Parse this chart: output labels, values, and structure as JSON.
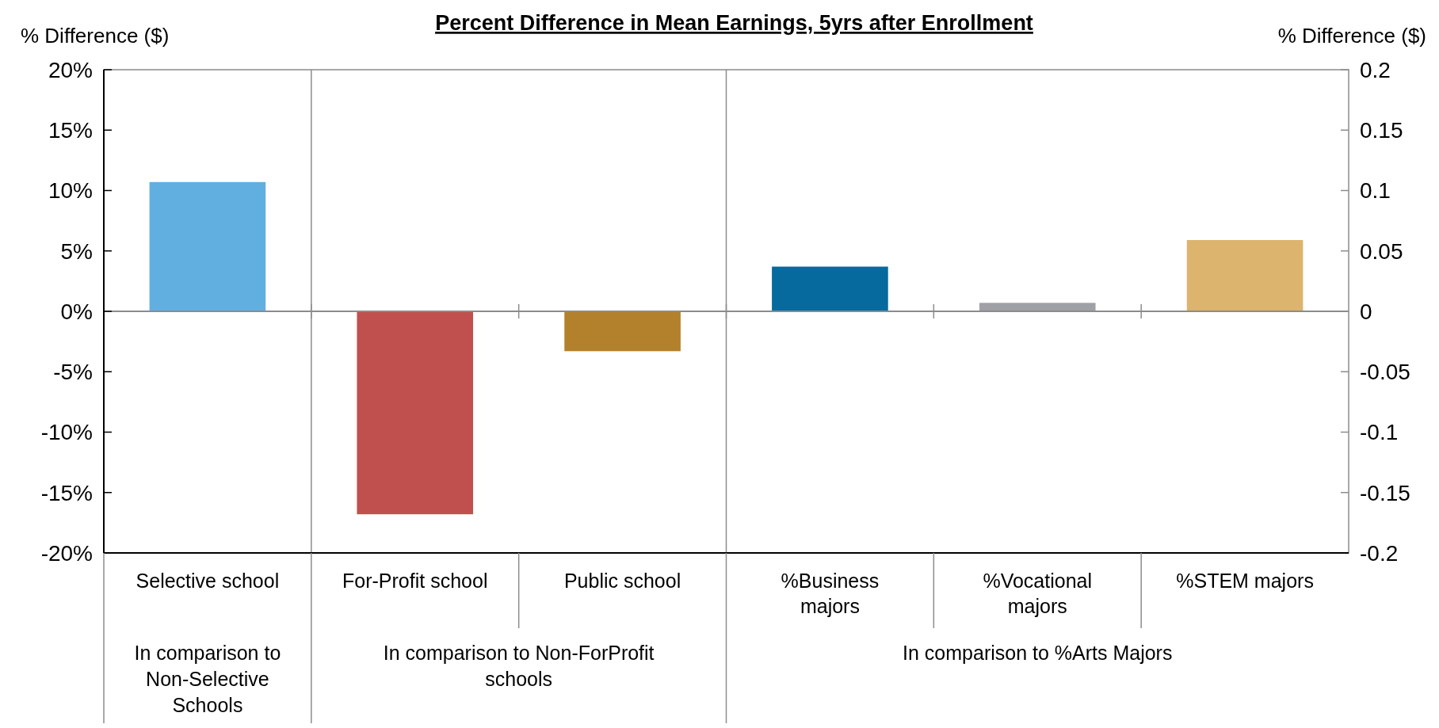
{
  "chart_data": {
    "type": "bar",
    "title": "Percent Difference in Mean Earnings, 5yrs after Enrollment",
    "ylabel": "% Difference ($)",
    "y2label": "% Difference ($)",
    "categories": [
      "Selective school",
      "For-Profit school",
      "Public school",
      "%Business majors",
      "%Vocational majors",
      "%STEM majors"
    ],
    "values": [
      10.7,
      -16.8,
      -3.3,
      3.7,
      0.7,
      5.9
    ],
    "colors": [
      "#61afe1",
      "#c0504d",
      "#b3812c",
      "#066a9e",
      "#a0a1a6",
      "#dcb46e"
    ],
    "ylim": [
      -20,
      20
    ],
    "yticks": [
      {
        "value": 20,
        "label": "20%"
      },
      {
        "value": 15,
        "label": "15%"
      },
      {
        "value": 10,
        "label": "10%"
      },
      {
        "value": 5,
        "label": "5%"
      },
      {
        "value": 0,
        "label": "0%"
      },
      {
        "value": -5,
        "label": "-5%"
      },
      {
        "value": -10,
        "label": "-10%"
      },
      {
        "value": -15,
        "label": "-15%"
      },
      {
        "value": -20,
        "label": "-20%"
      }
    ],
    "y2lim": [
      -0.2,
      0.2
    ],
    "y2ticks": [
      0.2,
      0.15,
      0.1,
      0.05,
      0,
      -0.05,
      -0.1,
      -0.15,
      -0.2
    ],
    "annotations": [
      "In comparison to Non-Selective Schools",
      "In comparison to Non-ForProfit schools",
      "In comparison to %Arts Majors"
    ],
    "grid": false
  }
}
